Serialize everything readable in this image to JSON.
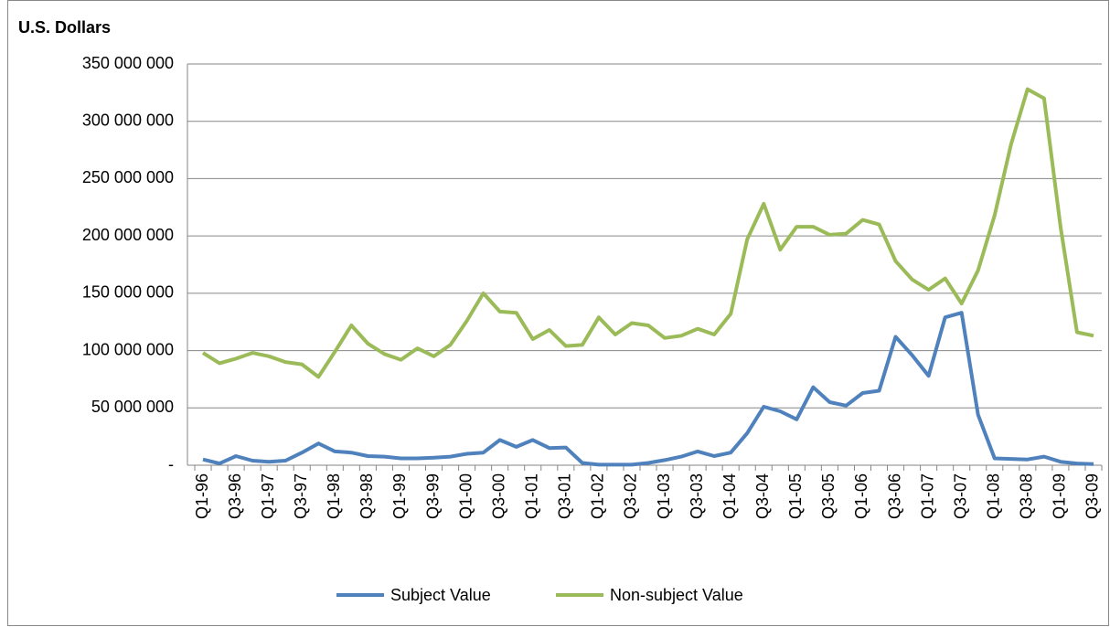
{
  "chart_data": {
    "type": "line",
    "y_axis_label": "U.S. Dollars",
    "categories": [
      "Q1-96",
      null,
      "Q3-96",
      null,
      "Q1-97",
      null,
      "Q3-97",
      null,
      "Q1-98",
      null,
      "Q3-98",
      null,
      "Q1-99",
      null,
      "Q3-99",
      null,
      "Q1-00",
      null,
      "Q3-00",
      null,
      "Q1-01",
      null,
      "Q3-01",
      null,
      "Q1-02",
      null,
      "Q3-02",
      null,
      "Q1-03",
      null,
      "Q3-03",
      null,
      "Q1-04",
      null,
      "Q3-04",
      null,
      "Q1-05",
      null,
      "Q3-05",
      null,
      "Q1-06",
      null,
      "Q3-06",
      null,
      "Q1-07",
      null,
      "Q3-07",
      null,
      "Q1-08",
      null,
      "Q3-08",
      null,
      "Q1-09",
      null,
      "Q3-09"
    ],
    "series": [
      {
        "name": "Subject Value",
        "color": "#4f81bd",
        "values": [
          5000000,
          1500000,
          8000000,
          4000000,
          3000000,
          4000000,
          11000000,
          19000000,
          12000000,
          11000000,
          8000000,
          7500000,
          6000000,
          6000000,
          6500000,
          7500000,
          10000000,
          11000000,
          22000000,
          16000000,
          22000000,
          15000000,
          15500000,
          2000000,
          500000,
          500000,
          500000,
          2000000,
          4500000,
          7500000,
          12000000,
          8000000,
          11000000,
          28000000,
          51000000,
          47000000,
          40000000,
          68000000,
          55000000,
          52000000,
          63000000,
          65000000,
          112000000,
          96000000,
          78000000,
          129000000,
          133000000,
          44000000,
          6000000,
          5500000,
          5000000,
          7500000,
          3000000,
          1500000,
          1000000
        ]
      },
      {
        "name": "Non-subject Value",
        "color": "#9bbb59",
        "values": [
          98000000,
          89000000,
          93000000,
          98000000,
          95000000,
          90000000,
          88000000,
          77000000,
          99000000,
          122000000,
          106000000,
          97000000,
          92000000,
          102000000,
          95000000,
          105000000,
          126000000,
          150000000,
          134000000,
          133000000,
          110000000,
          118000000,
          104000000,
          105000000,
          129000000,
          114000000,
          124000000,
          122000000,
          111000000,
          113000000,
          119000000,
          114000000,
          132000000,
          197000000,
          228000000,
          188000000,
          208000000,
          208000000,
          201000000,
          202000000,
          214000000,
          210000000,
          178000000,
          162000000,
          153000000,
          163000000,
          141000000,
          170000000,
          218000000,
          280000000,
          328000000,
          320000000,
          208000000,
          116000000,
          113000000
        ]
      }
    ],
    "ylim": [
      0,
      350000000
    ],
    "yticks": [
      {
        "value": 0,
        "label": "-"
      },
      {
        "value": 50000000,
        "label": "50 000 000"
      },
      {
        "value": 100000000,
        "label": "100 000 000"
      },
      {
        "value": 150000000,
        "label": "150 000 000"
      },
      {
        "value": 200000000,
        "label": "200 000 000"
      },
      {
        "value": 250000000,
        "label": "250 000 000"
      },
      {
        "value": 300000000,
        "label": "300 000 000"
      },
      {
        "value": 350000000,
        "label": "350 000 000"
      }
    ],
    "grid": true,
    "legend": "bottom"
  }
}
